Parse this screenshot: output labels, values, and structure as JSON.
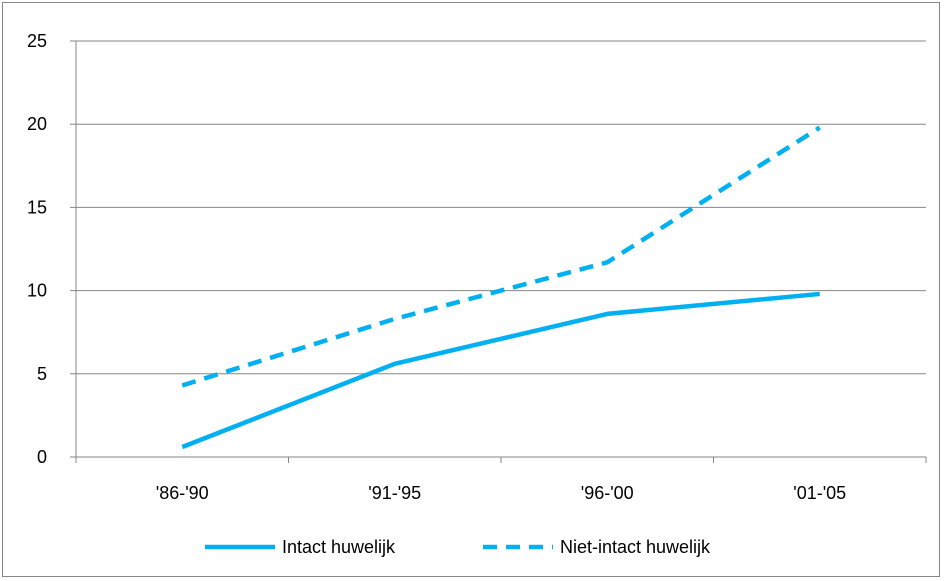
{
  "chart_data": {
    "type": "line",
    "categories": [
      "'86-'90",
      "'91-'95",
      "'96-'00",
      "'01-'05"
    ],
    "series": [
      {
        "name": "Intact huwelijk",
        "values": [
          0.6,
          5.6,
          8.6,
          9.8
        ],
        "color": "#00B0F0",
        "style": "solid"
      },
      {
        "name": "Niet-intact huwelijk",
        "values": [
          4.3,
          8.3,
          11.7,
          19.8
        ],
        "color": "#00B0F0",
        "style": "dashed"
      }
    ],
    "ylim": [
      0,
      25
    ],
    "yticks": [
      "0",
      "5",
      "10",
      "15",
      "20",
      "25"
    ],
    "grid": "horizontal",
    "legend": "bottom"
  }
}
